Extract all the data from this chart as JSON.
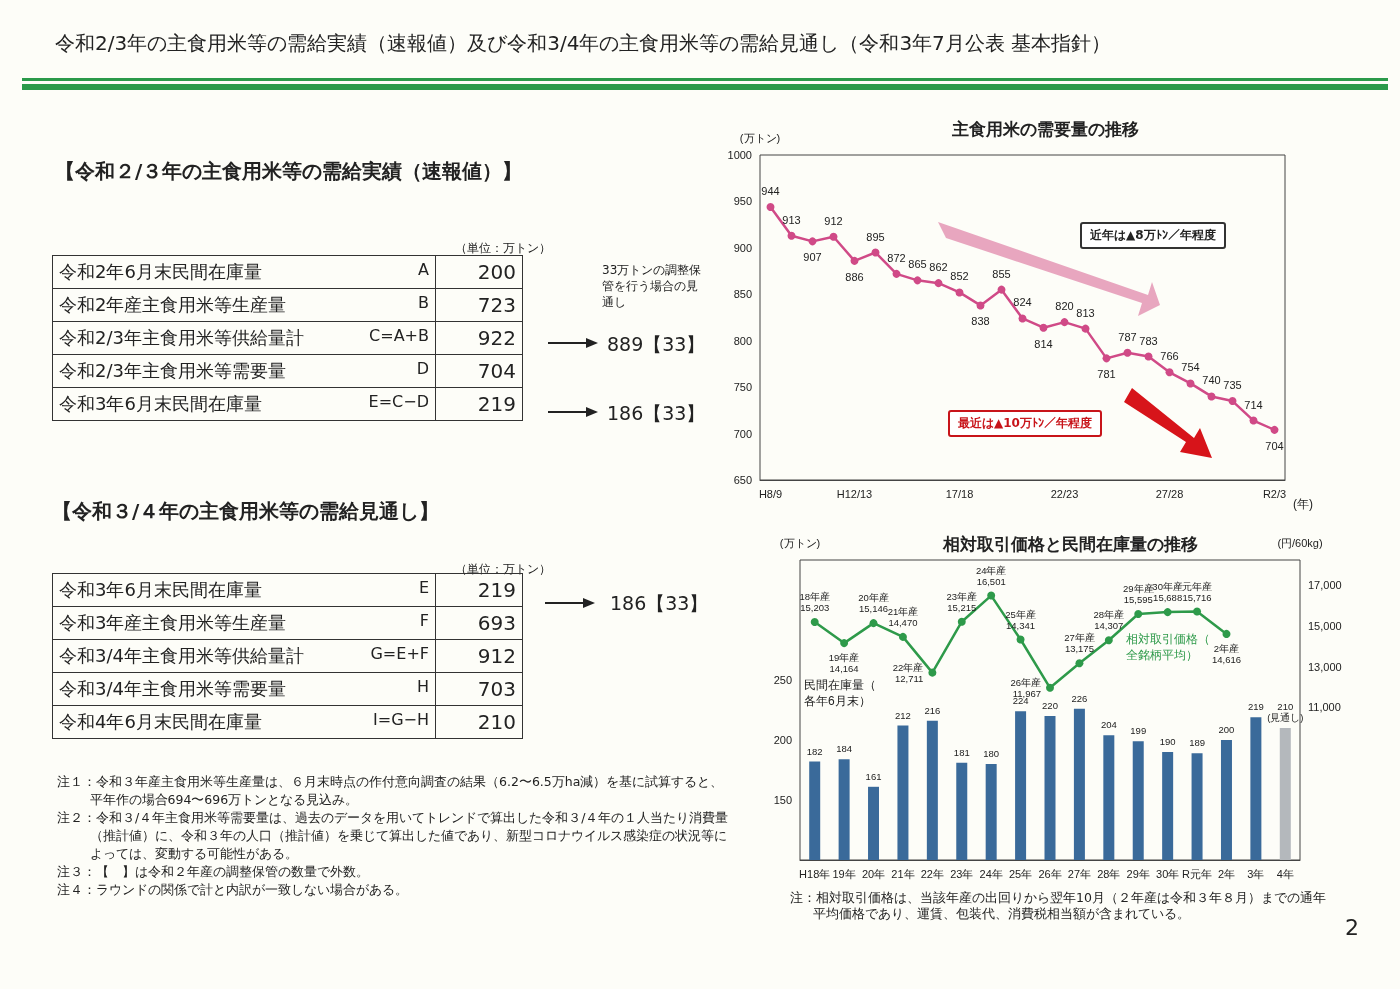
{
  "chart_data": [
    {
      "type": "other",
      "title": "令和2/3年の主食用米等の需給実績（速報値）及び令和3/4年の主食用米等の需給見通し（令和3年7月公表 基本指針）",
      "annotations": [
        "【令和２/３年の主食用米等の需給実績（速報値）】",
        "（単位：万トン）",
        "令和2年6月末民間在庫量",
        "A",
        "200",
        "令和2年産主食用米等生産量",
        "B",
        "723",
        "令和2/3年主食用米等供給量計",
        "C=A+B",
        "922",
        "令和2/3年主食用米等需要量",
        "D",
        "704",
        "令和3年6月末民間在庫量",
        "E=C−D",
        "219",
        "33万トンの調整保管を行う場合の見通し",
        "889【33】",
        "186【33】",
        "【令和３/４年の主食用米等の需給見通し】",
        "（単位：万トン）",
        "令和3年6月末民間在庫量",
        "E",
        "219",
        "令和3年産主食用米等生産量",
        "F",
        "693",
        "令和3/4年主食用米等供給量計",
        "G=E+F",
        "912",
        "令和3/4年主食用米等需要量",
        "H",
        "703",
        "令和4年6月末民間在庫量",
        "I=G−H",
        "210",
        "186【33】",
        "注１：令和３年産主食用米等生産量は、６月末時点の作付意向調査の結果（6.2〜6.5万ha減）を基に試算すると、平年作の場合694〜696万トンとなる見込み。",
        "注２：令和３/４年主食用米等需要量は、過去のデータを用いてトレンドで算出した令和３/４年の１人当たり消費量（推計値）に、令和３年の人口（推計値）を乗じて算出した値であり、新型コロナウイルス感染症の状況等によっては、変動する可能性がある。",
        "注３：【　】は令和２年産の調整保管の数量で外数。",
        "注４：ラウンドの関係で計と内訳が一致しない場合がある。",
        "2"
      ]
    },
    {
      "type": "line",
      "title": "主食用米の需要量の推移",
      "ylabel": "(万トン)",
      "xlabel": "(年)",
      "categories": [
        "H8/9",
        null,
        null,
        null,
        "H12/13",
        null,
        null,
        null,
        null,
        "17/18",
        null,
        null,
        null,
        null,
        "22/23",
        null,
        null,
        null,
        null,
        "27/28",
        null,
        null,
        null,
        null,
        "R2/3"
      ],
      "values": [
        944,
        913,
        907,
        912,
        886,
        895,
        872,
        865,
        862,
        852,
        838,
        855,
        824,
        814,
        820,
        813,
        781,
        787,
        783,
        766,
        754,
        740,
        735,
        714,
        704
      ],
      "color": "#d04a87",
      "marker": "circle",
      "data_labels": true,
      "grid": false,
      "legend": false,
      "ylim": [
        650,
        1000
      ],
      "yticks": [
        650,
        700,
        750,
        800,
        850,
        900,
        950,
        1000
      ],
      "annotations": [
        "近年は▲8万ﾄﾝ／年程度",
        "最近は▲10万ﾄﾝ／年程度"
      ]
    },
    {
      "type": "bar",
      "title": "相対取引価格と民間在庫量の推移",
      "ylabel": "(万トン)",
      "y2label": "(円/60kg)",
      "categories": [
        "H18年",
        "19年",
        "20年",
        "21年",
        "22年",
        "23年",
        "24年",
        "25年",
        "26年",
        "27年",
        "28年",
        "29年",
        "30年",
        "R元年",
        "2年",
        "3年",
        "4年"
      ],
      "series": [
        {
          "name": "民間在庫量（各年6月末）",
          "type": "bar",
          "color": "#3a6a9a",
          "colors": [
            "#3a6a9a",
            "#3a6a9a",
            "#3a6a9a",
            "#3a6a9a",
            "#3a6a9a",
            "#3a6a9a",
            "#3a6a9a",
            "#3a6a9a",
            "#3a6a9a",
            "#3a6a9a",
            "#3a6a9a",
            "#3a6a9a",
            "#3a6a9a",
            "#3a6a9a",
            "#3a6a9a",
            "#3a6a9a",
            "#b4b8bc"
          ],
          "values": [
            182,
            184,
            161,
            212,
            216,
            181,
            180,
            224,
            220,
            226,
            204,
            199,
            190,
            189,
            200,
            219,
            210
          ],
          "value_labels": [
            "182",
            "184",
            "161",
            "212",
            "216",
            "181",
            "180",
            "224",
            "220",
            "226",
            "204",
            "199",
            "190",
            "189",
            "200",
            "219",
            "210\n(見通し)"
          ]
        },
        {
          "name": "相対取引価格（全銘柄平均）",
          "type": "line",
          "axis": "y2",
          "color": "#2e9a4a",
          "marker": "circle",
          "values": [
            15203,
            14164,
            15146,
            14470,
            12711,
            15215,
            16501,
            14341,
            11967,
            13175,
            14307,
            15595,
            15688,
            15716,
            14616,
            null,
            null
          ],
          "value_labels": [
            "18年産\n15,203",
            "19年産\n14,164",
            "20年産\n15,146",
            "21年産\n14,470",
            "22年産\n12,711",
            "23年産\n15,215",
            "24年産\n16,501",
            "25年産\n14,341",
            "26年産\n11,967",
            "27年産\n13,175",
            "28年産\n14,307",
            "29年産\n15,595",
            "30年産\n15,688",
            "元年産\n15,716",
            "2年産\n14,616",
            null,
            null
          ]
        }
      ],
      "ylim": [
        100,
        350
      ],
      "yticks": [
        150,
        200,
        250
      ],
      "y2lim": [
        3500,
        18250
      ],
      "y2ticks": [
        {
          "value": 11000,
          "label": "11,000"
        },
        {
          "value": 13000,
          "label": "13,000"
        },
        {
          "value": 15000,
          "label": "15,000"
        },
        {
          "value": 17000,
          "label": "17,000"
        }
      ],
      "grid": false,
      "legend": false,
      "annotations": [
        "注：相対取引価格は、当該年産の出回りから翌年10月（２年産は令和３年８月）までの通年平均価格であり、運賃、包装代、消費税相当額が含まれている。"
      ]
    }
  ]
}
